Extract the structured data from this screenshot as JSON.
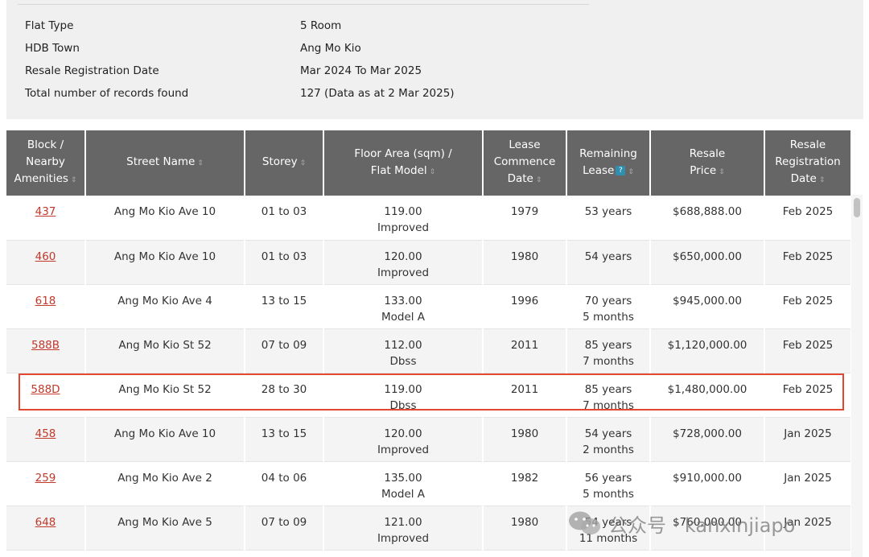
{
  "summary": {
    "items": [
      {
        "label": "Flat Type",
        "value": "5 Room"
      },
      {
        "label": "HDB Town",
        "value": "Ang Mo Kio"
      },
      {
        "label": "Resale Registration Date",
        "value": "Mar 2024 To Mar 2025"
      },
      {
        "label": "Total number of records found",
        "value": "127 (Data as at 2 Mar 2025)"
      }
    ]
  },
  "table": {
    "headers": [
      {
        "lines": [
          "Block /",
          "Nearby",
          "Amenities"
        ],
        "sortable": true,
        "help": false
      },
      {
        "lines": [
          "Street Name"
        ],
        "sortable": true,
        "help": false
      },
      {
        "lines": [
          "Storey"
        ],
        "sortable": true,
        "help": false
      },
      {
        "lines": [
          "Floor Area (sqm) /",
          "Flat Model"
        ],
        "sortable": true,
        "help": false
      },
      {
        "lines": [
          "Lease",
          "Commence",
          "Date"
        ],
        "sortable": true,
        "help": false
      },
      {
        "lines": [
          "Remaining",
          "Lease"
        ],
        "sortable": true,
        "help": true
      },
      {
        "lines": [
          "Resale",
          "Price"
        ],
        "sortable": true,
        "help": false
      },
      {
        "lines": [
          "Resale",
          "Registration",
          "Date"
        ],
        "sortable": true,
        "help": false
      }
    ],
    "sort_glyph": "⇕",
    "help_glyph": "?",
    "rows": [
      {
        "block": "437",
        "street": "Ang Mo Kio Ave 10",
        "storey": "01 to 03",
        "area": "119.00",
        "model": "Improved",
        "lease_commence": "1979",
        "remaining_1": "53 years",
        "remaining_2": "",
        "price": "$688,888.00",
        "reg_date": "Feb 2025"
      },
      {
        "block": "460",
        "street": "Ang Mo Kio Ave 10",
        "storey": "01 to 03",
        "area": "120.00",
        "model": "Improved",
        "lease_commence": "1980",
        "remaining_1": "54 years",
        "remaining_2": "",
        "price": "$650,000.00",
        "reg_date": "Feb 2025"
      },
      {
        "block": "618",
        "street": "Ang Mo Kio Ave 4",
        "storey": "13 to 15",
        "area": "133.00",
        "model": "Model A",
        "lease_commence": "1996",
        "remaining_1": "70 years",
        "remaining_2": "5 months",
        "price": "$945,000.00",
        "reg_date": "Feb 2025"
      },
      {
        "block": "588B",
        "street": "Ang Mo Kio St 52",
        "storey": "07 to 09",
        "area": "112.00",
        "model": "Dbss",
        "lease_commence": "2011",
        "remaining_1": "85 years",
        "remaining_2": "7 months",
        "price": "$1,120,000.00",
        "reg_date": "Feb 2025"
      },
      {
        "block": "588D",
        "street": "Ang Mo Kio St 52",
        "storey": "28 to 30",
        "area": "119.00",
        "model": "Dbss",
        "lease_commence": "2011",
        "remaining_1": "85 years",
        "remaining_2": "7 months",
        "price": "$1,480,000.00",
        "reg_date": "Feb 2025"
      },
      {
        "block": "458",
        "street": "Ang Mo Kio Ave 10",
        "storey": "13 to 15",
        "area": "120.00",
        "model": "Improved",
        "lease_commence": "1980",
        "remaining_1": "54 years",
        "remaining_2": "2 months",
        "price": "$728,000.00",
        "reg_date": "Jan 2025"
      },
      {
        "block": "259",
        "street": "Ang Mo Kio Ave 2",
        "storey": "04 to 06",
        "area": "135.00",
        "model": "Model A",
        "lease_commence": "1982",
        "remaining_1": "56 years",
        "remaining_2": "5 months",
        "price": "$910,000.00",
        "reg_date": "Jan 2025"
      },
      {
        "block": "648",
        "street": "Ang Mo Kio Ave 5",
        "storey": "07 to 09",
        "area": "121.00",
        "model": "Improved",
        "lease_commence": "1980",
        "remaining_1": "54 years",
        "remaining_2": "11 months",
        "price": "$760,000.00",
        "reg_date": "Jan 2025"
      }
    ]
  },
  "highlighted_block": "588D",
  "colors": {
    "header_bg": "#666666",
    "link": "#c0392b",
    "highlight_border": "#e2472f",
    "help_badge": "#2e8fb0",
    "summary_bg": "#f0f0f0"
  },
  "watermark": {
    "text": "公众号 · kanxinjiapo",
    "icon": "wechat-icon"
  }
}
